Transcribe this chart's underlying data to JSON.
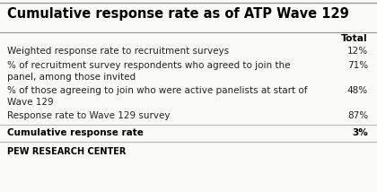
{
  "title": "Cumulative response rate as of ATP Wave 129",
  "header": "Total",
  "rows": [
    {
      "label": "Weighted response rate to recruitment surveys",
      "value": "12%",
      "bold": false,
      "multiline": false
    },
    {
      "label": "% of recruitment survey respondents who agreed to join the\npanel, among those invited",
      "value": "71%",
      "bold": false,
      "multiline": true
    },
    {
      "label": "% of those agreeing to join who were active panelists at start of\nWave 129",
      "value": "48%",
      "bold": false,
      "multiline": true
    },
    {
      "label": "Response rate to Wave 129 survey",
      "value": "87%",
      "bold": false,
      "multiline": false
    },
    {
      "label": "Cumulative response rate",
      "value": "3%",
      "bold": true,
      "multiline": false
    }
  ],
  "footer": "PEW RESEARCH CENTER",
  "bg_color": "#f9f9f7",
  "title_color": "#000000",
  "header_color": "#000000",
  "row_label_color": "#222222",
  "row_value_color": "#222222",
  "bold_row_color": "#000000",
  "divider_color": "#bbbbbb",
  "top_line_color": "#999999",
  "footer_color": "#000000",
  "title_fontsize": 10.5,
  "header_fontsize": 7.8,
  "row_fontsize": 7.5,
  "footer_fontsize": 7.0
}
